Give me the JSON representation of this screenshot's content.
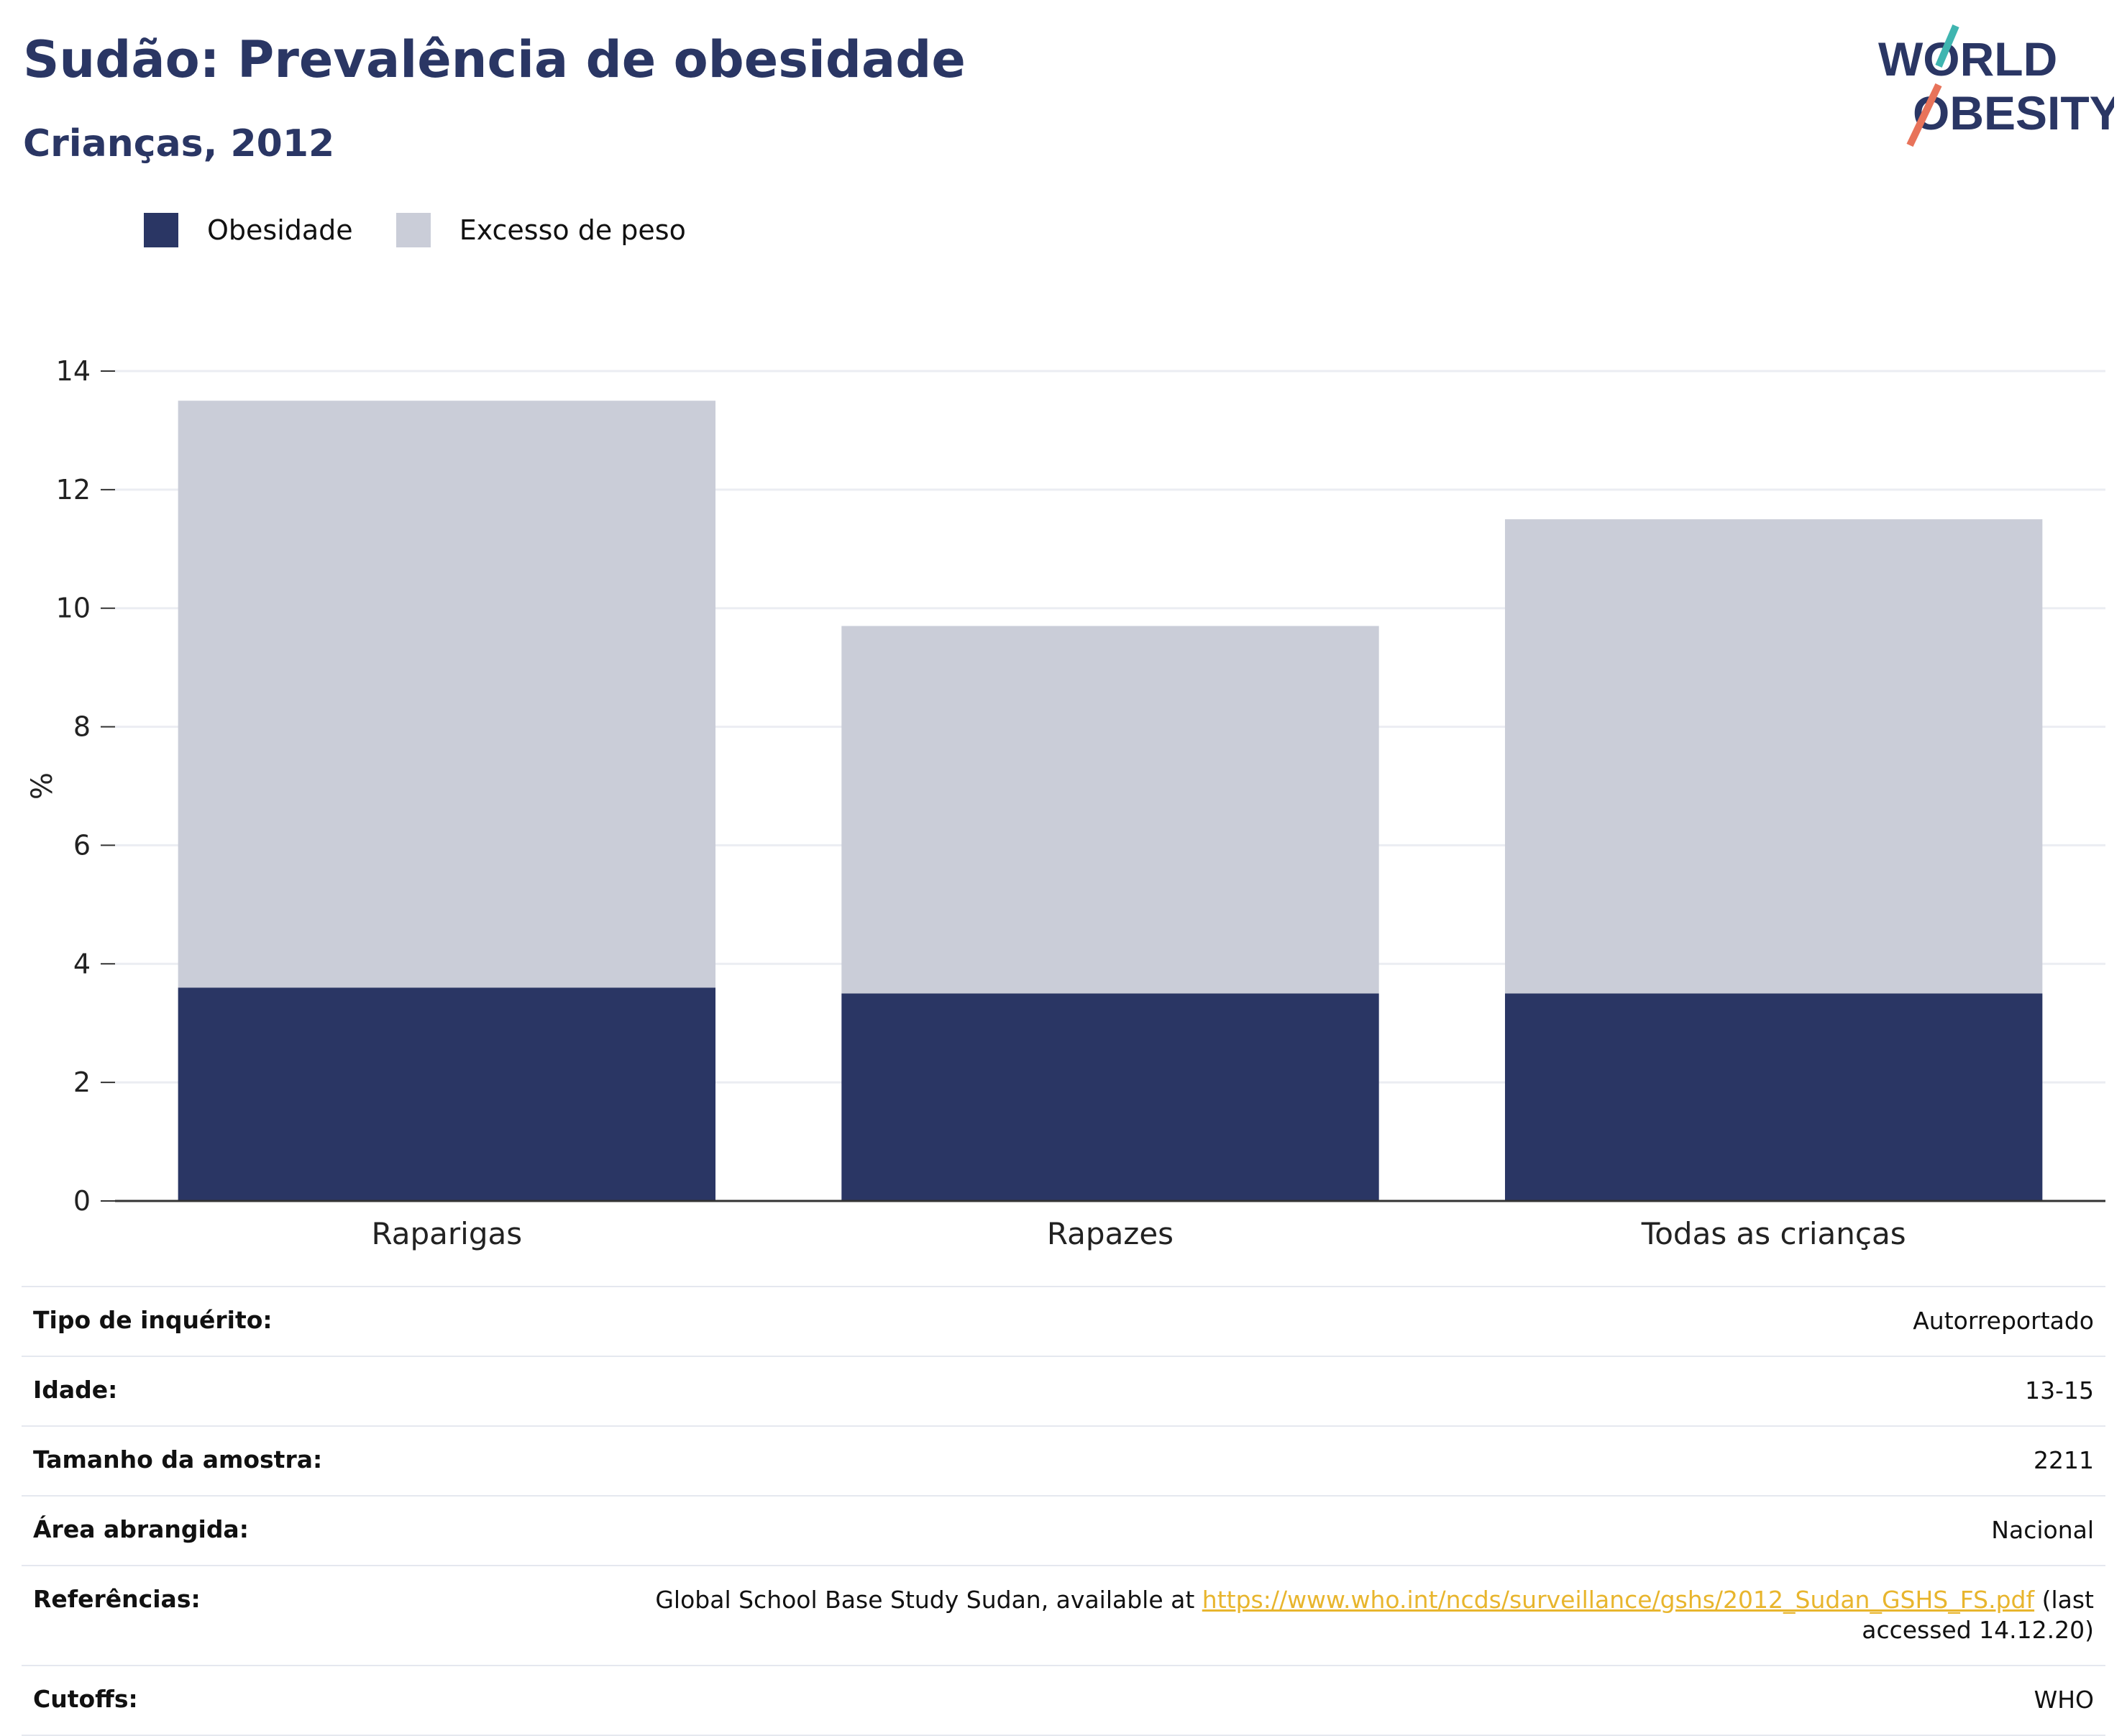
{
  "header": {
    "title": "Sudão: Prevalência de obesidade",
    "subtitle": "Crianças, 2012"
  },
  "logo": {
    "line1": "WORLD",
    "line2": "OBESITY"
  },
  "colors": {
    "obesity": "#2a3664",
    "overweight": "#cacdd8",
    "title": "#2a3664",
    "link": "#e8b52d",
    "accent_teal": "#3fb5b0",
    "accent_coral": "#e8735a"
  },
  "chart_data": {
    "type": "bar",
    "stacked": true,
    "categories": [
      "Raparigas",
      "Rapazes",
      "Todas as crianças"
    ],
    "series": [
      {
        "name": "Obesidade",
        "values": [
          3.6,
          3.5,
          3.5
        ]
      },
      {
        "name": "Excesso de peso",
        "values": [
          9.9,
          6.2,
          8.0
        ]
      }
    ],
    "ylabel": "%",
    "ylim": [
      0,
      14
    ],
    "yticks": [
      0,
      2,
      4,
      6,
      8,
      10,
      12,
      14
    ],
    "grid": true,
    "legend": "top-left"
  },
  "info": [
    {
      "label": "Tipo de inquérito:",
      "value": "Autorreportado"
    },
    {
      "label": "Idade:",
      "value": "13-15"
    },
    {
      "label": "Tamanho da amostra:",
      "value": "2211"
    },
    {
      "label": "Área abrangida:",
      "value": "Nacional"
    },
    {
      "label": "Referências:",
      "value_prefix": "Global School Base Study Sudan, available at ",
      "link": "https://www.who.int/ncds/surveillance/gshs/2012_Sudan_GSHS_FS.pdf",
      "value_suffix": " (last accessed 14.12.20)"
    },
    {
      "label": "Cutoffs:",
      "value": "WHO"
    }
  ]
}
